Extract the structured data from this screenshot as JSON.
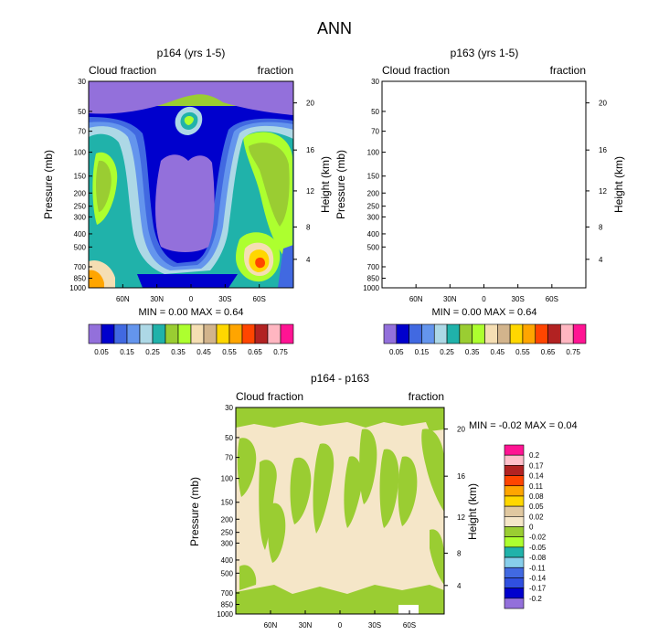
{
  "page_title": "ANN",
  "colors": {
    "cloud_palette": [
      "#9370DB",
      "#0000CD",
      "#4169E1",
      "#6495ED",
      "#ADD8E6",
      "#20B2AA",
      "#9ACD32",
      "#ADFF2F",
      "#F5DEB3",
      "#D2B48C",
      "#FFD700",
      "#FFA500",
      "#FF4500",
      "#B22222",
      "#FFB6C1",
      "#FF1493"
    ],
    "diff_palette": [
      "#9370DB",
      "#0000CD",
      "#4169E1",
      "#87CEEB",
      "#20B2AA",
      "#ADFF2F",
      "#9ACD32",
      "#F5E6C8",
      "#E0C8A0",
      "#FFD700",
      "#FFA500",
      "#FF4500",
      "#B22222",
      "#FFC0CB",
      "#FF1493"
    ],
    "axis": "#000000"
  },
  "chart_data": [
    {
      "type": "heatmap",
      "title": "p164 (yrs 1-5)",
      "left_string": "Cloud fraction",
      "right_string": "fraction",
      "ylabel": "Pressure (mb)",
      "ylabel_right": "Height (km)",
      "x_ticks": [
        "60N",
        "30N",
        "0",
        "30S",
        "60S"
      ],
      "x_values": [
        60,
        30,
        0,
        -30,
        -60
      ],
      "xlim": [
        90,
        -90
      ],
      "y_ticks": [
        "30",
        "50",
        "70",
        "100",
        "150",
        "200",
        "250",
        "300",
        "400",
        "500",
        "700",
        "850",
        "1000"
      ],
      "y_values": [
        30,
        50,
        70,
        100,
        150,
        200,
        250,
        300,
        400,
        500,
        700,
        850,
        1000
      ],
      "ylim": [
        30,
        1000
      ],
      "height_ticks": [
        "20",
        "16",
        "12",
        "8",
        "4"
      ],
      "height_values": [
        20,
        16,
        12,
        8,
        4
      ],
      "stats": "MIN =   0.00   MAX =   0.64",
      "min": 0.0,
      "max": 0.64,
      "colorbar_labels": [
        "0.05",
        "0.15",
        "0.25",
        "0.35",
        "0.45",
        "0.55",
        "0.65",
        "0.75"
      ]
    },
    {
      "type": "heatmap",
      "title": "p163 (yrs 1-5)",
      "left_string": "Cloud fraction",
      "right_string": "fraction",
      "ylabel": "Pressure (mb)",
      "ylabel_right": "Height (km)",
      "x_ticks": [
        "60N",
        "30N",
        "0",
        "30S",
        "60S"
      ],
      "x_values": [
        60,
        30,
        0,
        -30,
        -60
      ],
      "xlim": [
        90,
        -90
      ],
      "y_ticks": [
        "30",
        "50",
        "70",
        "100",
        "150",
        "200",
        "250",
        "300",
        "400",
        "500",
        "700",
        "850",
        "1000"
      ],
      "y_values": [
        30,
        50,
        70,
        100,
        150,
        200,
        250,
        300,
        400,
        500,
        700,
        850,
        1000
      ],
      "ylim": [
        30,
        1000
      ],
      "height_ticks": [
        "20",
        "16",
        "12",
        "8",
        "4"
      ],
      "height_values": [
        20,
        16,
        12,
        8,
        4
      ],
      "stats": "MIN =   0.00   MAX =   0.64",
      "min": 0.0,
      "max": 0.64,
      "colorbar_labels": [
        "0.05",
        "0.15",
        "0.25",
        "0.35",
        "0.45",
        "0.55",
        "0.65",
        "0.75"
      ]
    },
    {
      "type": "heatmap",
      "title": "p164 - p163",
      "left_string": "Cloud fraction",
      "right_string": "fraction",
      "ylabel": "Pressure (mb)",
      "ylabel_right": "Height (km)",
      "x_ticks": [
        "60N",
        "30N",
        "0",
        "30S",
        "60S"
      ],
      "x_values": [
        60,
        30,
        0,
        -30,
        -60
      ],
      "xlim": [
        90,
        -90
      ],
      "y_ticks": [
        "30",
        "50",
        "70",
        "100",
        "150",
        "200",
        "250",
        "300",
        "400",
        "500",
        "700",
        "850",
        "1000"
      ],
      "y_values": [
        30,
        50,
        70,
        100,
        150,
        200,
        250,
        300,
        400,
        500,
        700,
        850,
        1000
      ],
      "ylim": [
        30,
        1000
      ],
      "height_ticks": [
        "20",
        "16",
        "12",
        "8",
        "4"
      ],
      "height_values": [
        20,
        16,
        12,
        8,
        4
      ],
      "stats": "MIN =  -0.02   MAX =   0.04",
      "min": -0.02,
      "max": 0.04,
      "colorbar_labels": [
        "0.2",
        "0.17",
        "0.14",
        "0.11",
        "0.08",
        "0.05",
        "0.02",
        "0",
        "-0.02",
        "-0.05",
        "-0.08",
        "-0.11",
        "-0.14",
        "-0.17",
        "-0.2"
      ]
    }
  ]
}
